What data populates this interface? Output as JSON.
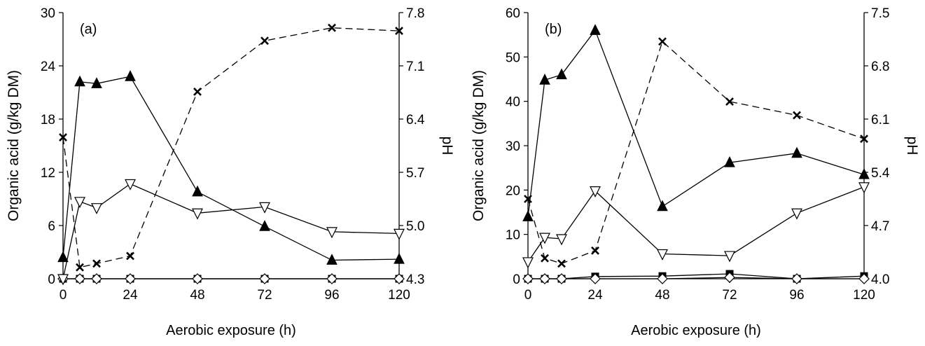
{
  "chart_data": [
    {
      "type": "line",
      "panel_label": "(a)",
      "xlabel": "Aerobic exposure (h)",
      "ylabel": "Organic acid (g/kg DM)",
      "y2label": "pH",
      "xlim": [
        0,
        120
      ],
      "ylim": [
        0,
        30
      ],
      "y2lim": [
        4.3,
        7.8
      ],
      "xticks": [
        "0",
        "24",
        "48",
        "72",
        "96",
        "120"
      ],
      "yticks": [
        "0",
        "6",
        "12",
        "18",
        "24",
        "30"
      ],
      "y2ticks": [
        "4.3",
        "5.0",
        "5.7",
        "6.4",
        "7.1",
        "7.8"
      ],
      "grid": false,
      "series": [
        {
          "marker": "triangle-up-filled",
          "line": "solid",
          "axis": "left",
          "x": [
            0,
            6,
            12,
            24,
            48,
            72,
            96,
            120
          ],
          "y": [
            2.4,
            22.2,
            22.0,
            22.8,
            9.8,
            5.9,
            2.1,
            2.2
          ]
        },
        {
          "marker": "triangle-down-open",
          "line": "solid",
          "axis": "left",
          "x": [
            0,
            6,
            12,
            24,
            48,
            72,
            96,
            120
          ],
          "y": [
            0,
            8.7,
            8.0,
            10.7,
            7.4,
            8.1,
            5.3,
            5.1
          ]
        },
        {
          "marker": "x",
          "line": "dashed",
          "axis": "right",
          "x": [
            0,
            6,
            12,
            24,
            48,
            72,
            96,
            120
          ],
          "y": [
            6.16,
            4.45,
            4.5,
            4.6,
            6.76,
            7.43,
            7.6,
            7.56
          ]
        },
        {
          "marker": "square-filled",
          "line": "solid",
          "axis": "left",
          "x": [
            0,
            6,
            12,
            24,
            48,
            72,
            96,
            120
          ],
          "y": [
            0,
            0,
            0,
            0,
            0,
            0,
            0,
            0
          ]
        },
        {
          "marker": "diamond-open",
          "line": "solid",
          "axis": "left",
          "x": [
            0,
            6,
            12,
            24,
            48,
            72,
            96,
            120
          ],
          "y": [
            0,
            0,
            0,
            0,
            0,
            0,
            0,
            0
          ]
        }
      ]
    },
    {
      "type": "line",
      "panel_label": "(b)",
      "xlabel": "Aerobic exposure (h)",
      "ylabel": "Organic acid (g/kg DM)",
      "y2label": "pH",
      "xlim": [
        0,
        120
      ],
      "ylim": [
        0,
        60
      ],
      "y2lim": [
        4.0,
        7.5
      ],
      "xticks": [
        "0",
        "24",
        "48",
        "72",
        "96",
        "120"
      ],
      "yticks": [
        "0",
        "10",
        "20",
        "30",
        "40",
        "50",
        "60"
      ],
      "y2ticks": [
        "4.0",
        "4.7",
        "5.4",
        "6.1",
        "6.8",
        "7.5"
      ],
      "grid": false,
      "series": [
        {
          "marker": "triangle-up-filled",
          "line": "solid",
          "axis": "left",
          "x": [
            0,
            6,
            12,
            24,
            48,
            72,
            96,
            120
          ],
          "y": [
            14,
            44.8,
            46,
            56,
            16.3,
            26.2,
            28.3,
            23.5
          ]
        },
        {
          "marker": "triangle-down-open",
          "line": "solid",
          "axis": "left",
          "x": [
            0,
            6,
            12,
            24,
            48,
            72,
            96,
            120
          ],
          "y": [
            3.8,
            9.3,
            9.0,
            19.8,
            5.6,
            5.2,
            14.8,
            20.7
          ]
        },
        {
          "marker": "x",
          "line": "dashed",
          "axis": "right",
          "x": [
            0,
            6,
            12,
            24,
            48,
            72,
            96,
            120
          ],
          "y": [
            5.05,
            4.27,
            4.2,
            4.37,
            7.12,
            6.33,
            6.15,
            5.84
          ]
        },
        {
          "marker": "square-filled",
          "line": "solid",
          "axis": "left",
          "x": [
            0,
            6,
            12,
            24,
            48,
            72,
            96,
            120
          ],
          "y": [
            0,
            0,
            0,
            0.5,
            0.6,
            1.1,
            0,
            0.6
          ]
        },
        {
          "marker": "diamond-open",
          "line": "solid",
          "axis": "left",
          "x": [
            0,
            6,
            12,
            24,
            48,
            72,
            96,
            120
          ],
          "y": [
            0,
            0,
            0,
            0,
            0,
            0.3,
            0,
            0
          ]
        }
      ]
    }
  ]
}
